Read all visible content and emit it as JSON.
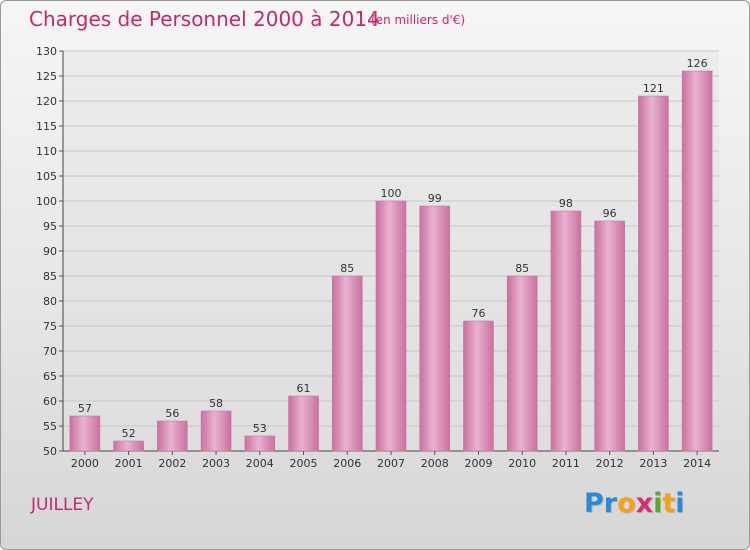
{
  "title": "Charges de Personnel 2000 à 2014",
  "subtitle": "(en milliers d'€)",
  "commune": "JUILLEY",
  "brand": {
    "letters": [
      "P",
      "r",
      "o",
      "x",
      "i",
      "t",
      "i"
    ],
    "colors": [
      "#2a8ad4",
      "#2a8ad4",
      "#f4a21b",
      "#d6306e",
      "#5aa82c",
      "#f4a21b",
      "#2a8ad4"
    ]
  },
  "colors": {
    "bar": "#d98ab5",
    "bar_light": "#e9b2d1",
    "bar_dark": "#c9709f",
    "grid": "#c8c8c8",
    "title": "#c4286d"
  },
  "chart_data": {
    "type": "bar",
    "categories": [
      "2000",
      "2001",
      "2002",
      "2003",
      "2004",
      "2005",
      "2006",
      "2007",
      "2008",
      "2009",
      "2010",
      "2011",
      "2012",
      "2013",
      "2014"
    ],
    "values": [
      57,
      52,
      56,
      58,
      53,
      61,
      85,
      100,
      99,
      76,
      85,
      98,
      96,
      121,
      126
    ],
    "ylim": [
      50,
      130
    ],
    "yticks": [
      50,
      55,
      60,
      65,
      70,
      75,
      80,
      85,
      90,
      95,
      100,
      105,
      110,
      115,
      120,
      125,
      130
    ],
    "grid": true,
    "data_labels": true
  }
}
